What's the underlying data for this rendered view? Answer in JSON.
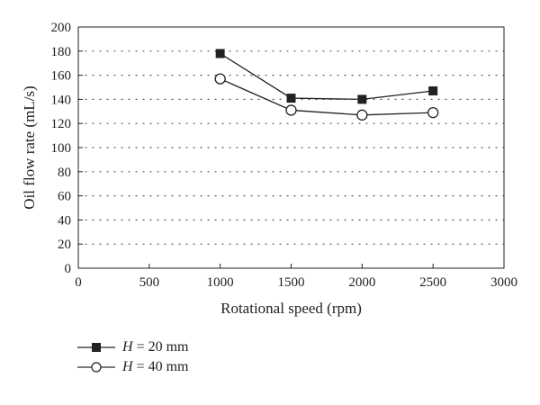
{
  "chart_data": {
    "type": "line",
    "title": "",
    "xlabel": "Rotational speed (rpm)",
    "ylabel": "Oil flow rate (mL/s)",
    "xlim": [
      0,
      3000
    ],
    "ylim": [
      0,
      200
    ],
    "xticks": [
      "0",
      "500",
      "1000",
      "1500",
      "2000",
      "2500",
      "3000"
    ],
    "yticks": [
      "0",
      "20",
      "40",
      "60",
      "80",
      "100",
      "120",
      "140",
      "160",
      "180",
      "200"
    ],
    "grid": "horizontal dotted",
    "legend_position": "bottom-left",
    "series": [
      {
        "var": "H",
        "rest": " = 20 mm",
        "marker": "filled-square",
        "x": [
          1000,
          1500,
          2000,
          2500
        ],
        "y": [
          178,
          141,
          140,
          147
        ]
      },
      {
        "var": "H",
        "rest": " = 40 mm",
        "marker": "open-circle",
        "x": [
          1000,
          1500,
          2000,
          2500
        ],
        "y": [
          157,
          131,
          127,
          129
        ]
      }
    ],
    "colors": {
      "line": "#222222",
      "grid": "#555555"
    }
  }
}
